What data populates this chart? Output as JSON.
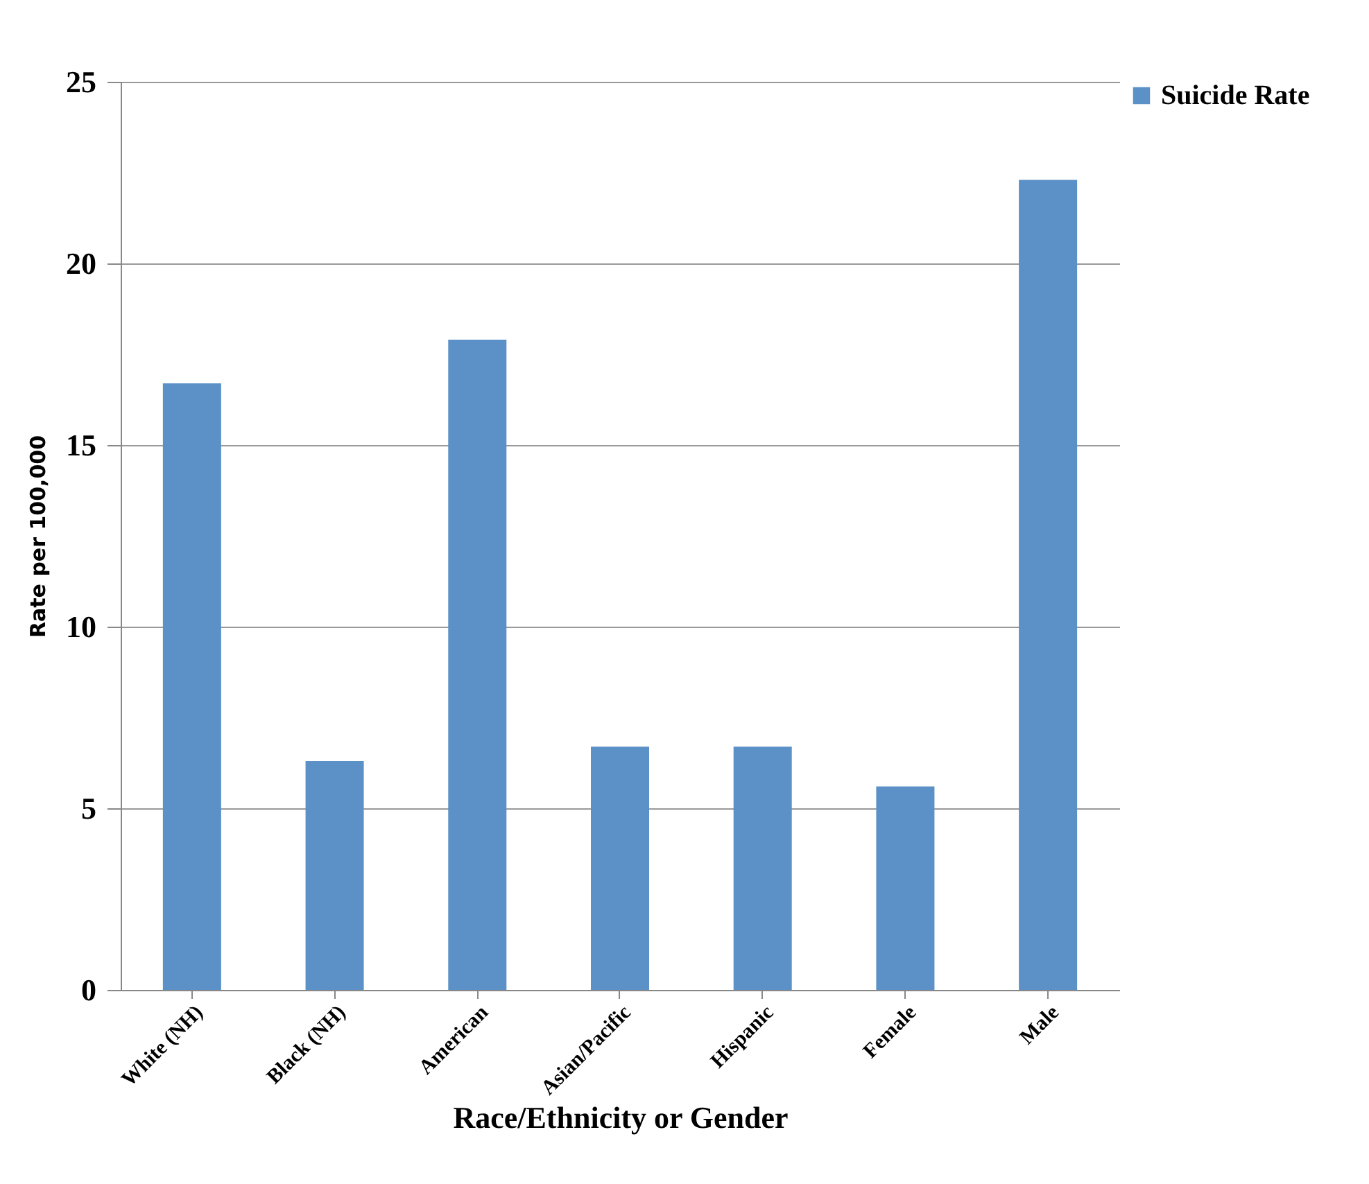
{
  "chart_data": {
    "type": "bar",
    "xlabel": "Race/Ethnicity or Gender",
    "ylabel": "Rate per 100,000",
    "categories": [
      "White (NH)",
      "Black (NH)",
      "American",
      "Asian/Pacific",
      "Hispanic",
      "Female",
      "Male"
    ],
    "series": [
      {
        "name": "Suicide Rate",
        "color": "#5b91c6",
        "values": [
          16.7,
          6.3,
          17.9,
          6.7,
          6.7,
          5.6,
          22.3
        ]
      }
    ],
    "ylim": [
      0,
      25
    ],
    "yticks": [
      0,
      5,
      10,
      15,
      20,
      25
    ],
    "grid": "y",
    "legend": "right"
  }
}
